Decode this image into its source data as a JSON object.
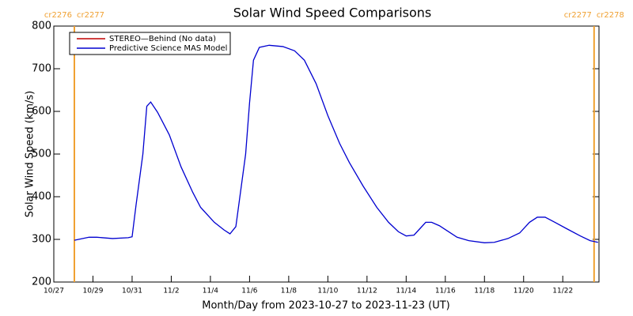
{
  "chart_data": {
    "type": "line",
    "title": "Solar Wind Speed Comparisons",
    "x_label": "Month/Day from 2023-10-27 to 2023-11-23 (UT)",
    "y_label": "Solar Wind Speed (km/s)",
    "xlim": [
      0,
      27.85
    ],
    "xticks": [
      {
        "value": 0,
        "label": "10/27"
      },
      {
        "value": 2,
        "label": "10/29"
      },
      {
        "value": 4,
        "label": "10/31"
      },
      {
        "value": 6,
        "label": "11/2"
      },
      {
        "value": 8,
        "label": "11/4"
      },
      {
        "value": 10,
        "label": "11/6"
      },
      {
        "value": 12,
        "label": "11/8"
      },
      {
        "value": 14,
        "label": "11/10"
      },
      {
        "value": 16,
        "label": "11/12"
      },
      {
        "value": 18,
        "label": "11/14"
      },
      {
        "value": 20,
        "label": "11/16"
      },
      {
        "value": 22,
        "label": "11/18"
      },
      {
        "value": 24,
        "label": "11/20"
      },
      {
        "value": 26,
        "label": "11/22"
      }
    ],
    "ylim": [
      200,
      800
    ],
    "yticks": [
      200,
      300,
      400,
      500,
      600,
      700,
      800
    ],
    "x": [
      1.05,
      1.8,
      2.2,
      3,
      3.8,
      4.0,
      4.2,
      4.55,
      4.75,
      4.95,
      5.3,
      5.9,
      6.5,
      7.1,
      7.5,
      8.2,
      8.7,
      9.0,
      9.3,
      9.8,
      10.0,
      10.2,
      10.5,
      11,
      11.7,
      12.3,
      12.8,
      13.4,
      14.0,
      14.6,
      15.1,
      15.8,
      16.5,
      17.1,
      17.6,
      18.0,
      18.4,
      18.7,
      19.0,
      19.3,
      19.7,
      20.1,
      20.6,
      21.2,
      22.0,
      22.5,
      23.2,
      23.8,
      24.3,
      24.7,
      25.1,
      25.6,
      26.2,
      26.9,
      27.4,
      27.8
    ],
    "series": [
      {
        "name": "STEREO—Behind (No data)",
        "color": "#c00000",
        "values": [
          null,
          null,
          null,
          null,
          null,
          null,
          null,
          null,
          null,
          null,
          null,
          null,
          null,
          null,
          null,
          null,
          null,
          null,
          null,
          null,
          null,
          null,
          null,
          null,
          null,
          null,
          null,
          null,
          null,
          null,
          null,
          null,
          null,
          null,
          null,
          null,
          null,
          null,
          null,
          null,
          null,
          null,
          null,
          null,
          null,
          null,
          null,
          null,
          null,
          null,
          null,
          null,
          null,
          null,
          null,
          null
        ]
      },
      {
        "name": "Predictive Science MAS Model",
        "color": "#0000d0",
        "values": [
          298,
          305,
          305,
          302,
          304,
          306,
          380,
          500,
          612,
          622,
          598,
          545,
          470,
          410,
          375,
          340,
          322,
          313,
          330,
          500,
          620,
          720,
          750,
          755,
          752,
          742,
          720,
          665,
          590,
          525,
          480,
          425,
          375,
          340,
          318,
          308,
          310,
          325,
          340,
          340,
          332,
          320,
          305,
          297,
          292,
          293,
          302,
          315,
          340,
          352,
          352,
          340,
          325,
          308,
          297,
          293
        ]
      }
    ],
    "boundary_color": "#f0a030",
    "boundaries": [
      {
        "x": 1.05,
        "left": "cr2276",
        "right": "cr2277"
      },
      {
        "x": 27.6,
        "left": "cr2277",
        "right": "cr2278"
      }
    ]
  }
}
